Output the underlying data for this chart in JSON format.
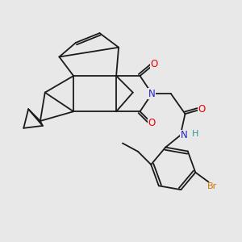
{
  "bg_color": "#e8e8e8",
  "bond_color": "#1a1a1a",
  "bond_width": 1.3,
  "atom_colors": {
    "O": "#ee0000",
    "N": "#2222cc",
    "Br": "#cc7700",
    "H": "#339999",
    "C": "#1a1a1a"
  },
  "font_size_atom": 8.5,
  "font_size_br": 8.0,
  "font_size_h": 8.0
}
